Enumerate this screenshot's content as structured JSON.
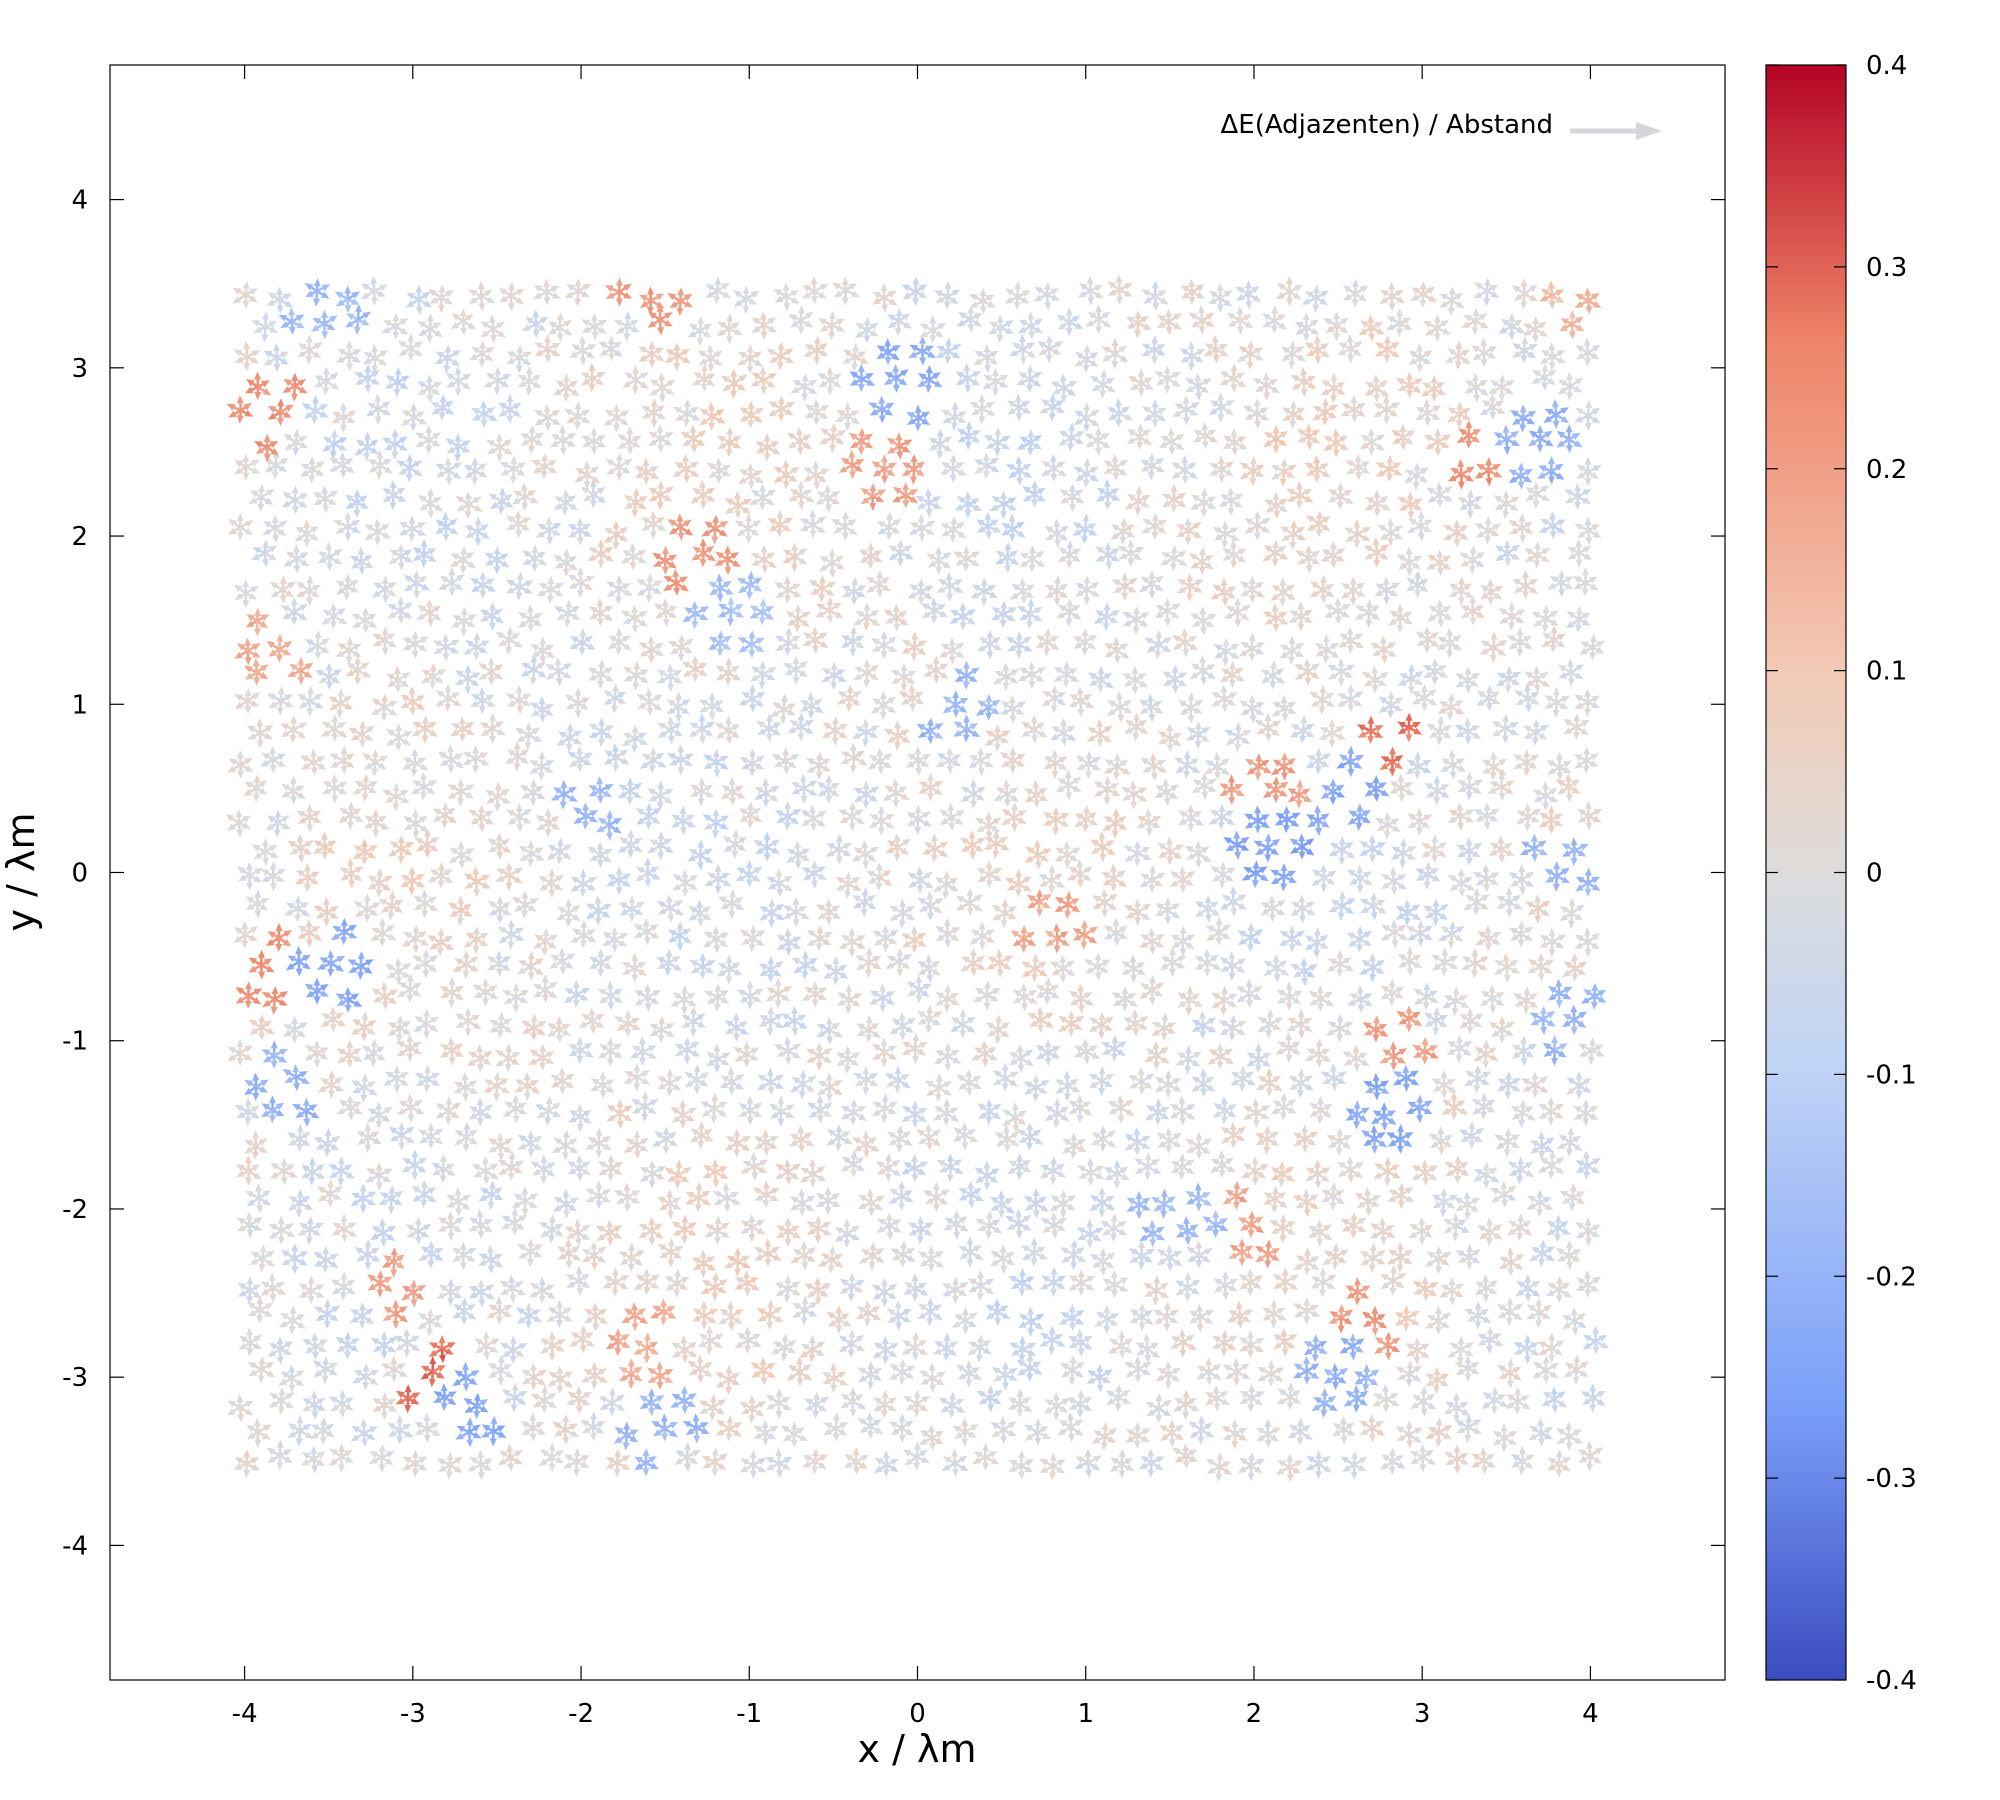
{
  "chart_data": {
    "type": "quiver",
    "xlabel": "x / λm",
    "ylabel": "y / λm",
    "xlim": [
      -4.8,
      4.8
    ],
    "ylim": [
      -4.8,
      4.8
    ],
    "xticks": [
      "-4",
      "-3",
      "-2",
      "-1",
      "0",
      "1",
      "2",
      "3",
      "4"
    ],
    "yticks": [
      "4",
      "3",
      "2",
      "1",
      "0",
      "-1",
      "-2",
      "-3",
      "-4"
    ],
    "legend": {
      "label": "ΔE(Adjazenten) / Abstand",
      "position": "top-right",
      "marker": "arrow",
      "marker_color": "#d4d6da"
    },
    "colorbar": {
      "range": [
        -0.4,
        0.4
      ],
      "ticks": [
        "0.4",
        "0.3",
        "0.2",
        "0.1",
        "0",
        "-0.1",
        "-0.2",
        "-0.3",
        "-0.4"
      ],
      "colormap": "coolwarm",
      "colors": [
        "#3b4cc0",
        "#7b9ff9",
        "#c0d4f5",
        "#dddcdc",
        "#f2cbb7",
        "#ee8468",
        "#b40426"
      ]
    },
    "lattice": {
      "kind": "triangular",
      "spacing": 0.2,
      "x_range": [
        -4,
        4
      ],
      "y_range": [
        -3.5,
        3.5
      ],
      "arrow_length_fraction": 0.45
    },
    "strong_sites": [
      {
        "x": -2.85,
        "y": -3.05,
        "value": 0.38
      },
      {
        "x": -3.85,
        "y": 2.75,
        "value": 0.3
      },
      {
        "x": -3.85,
        "y": -0.6,
        "value": 0.3
      },
      {
        "x": -1.6,
        "y": 3.5,
        "value": 0.28
      },
      {
        "x": -1.35,
        "y": 1.95,
        "value": 0.28
      },
      {
        "x": -0.15,
        "y": 2.45,
        "value": 0.26
      },
      {
        "x": 3.35,
        "y": 2.5,
        "value": 0.3
      },
      {
        "x": 2.75,
        "y": 0.75,
        "value": 0.36
      },
      {
        "x": 2.05,
        "y": 0.45,
        "value": 0.26
      },
      {
        "x": -3.1,
        "y": -2.45,
        "value": 0.25
      },
      {
        "x": -1.65,
        "y": -2.8,
        "value": 0.22
      },
      {
        "x": 2.9,
        "y": -1.05,
        "value": 0.26
      },
      {
        "x": 1.9,
        "y": -2.15,
        "value": 0.25
      },
      {
        "x": 0.85,
        "y": -0.3,
        "value": 0.24
      },
      {
        "x": 2.65,
        "y": -2.65,
        "value": 0.28
      },
      {
        "x": -3.85,
        "y": 1.3,
        "value": 0.22
      },
      {
        "x": 3.9,
        "y": 3.45,
        "value": 0.18
      },
      {
        "x": 2.1,
        "y": 0.1,
        "value": -0.32
      },
      {
        "x": 2.55,
        "y": 0.45,
        "value": -0.3
      },
      {
        "x": -0.1,
        "y": 2.9,
        "value": -0.28
      },
      {
        "x": -2.65,
        "y": -3.2,
        "value": -0.3
      },
      {
        "x": -3.45,
        "y": -0.55,
        "value": -0.3
      },
      {
        "x": -3.75,
        "y": -1.25,
        "value": -0.26
      },
      {
        "x": 2.85,
        "y": -1.4,
        "value": -0.3
      },
      {
        "x": 3.9,
        "y": 0.1,
        "value": -0.25
      },
      {
        "x": -1.95,
        "y": 0.4,
        "value": -0.24
      },
      {
        "x": 0.2,
        "y": 0.95,
        "value": -0.24
      },
      {
        "x": 2.45,
        "y": -2.95,
        "value": -0.26
      },
      {
        "x": 3.65,
        "y": 2.55,
        "value": -0.26
      },
      {
        "x": -1.55,
        "y": -3.3,
        "value": -0.24
      },
      {
        "x": -3.5,
        "y": 3.35,
        "value": -0.22
      },
      {
        "x": 1.55,
        "y": -2.0,
        "value": -0.22
      },
      {
        "x": 3.85,
        "y": -0.85,
        "value": -0.24
      },
      {
        "x": -1.1,
        "y": 1.55,
        "value": -0.2
      }
    ]
  }
}
